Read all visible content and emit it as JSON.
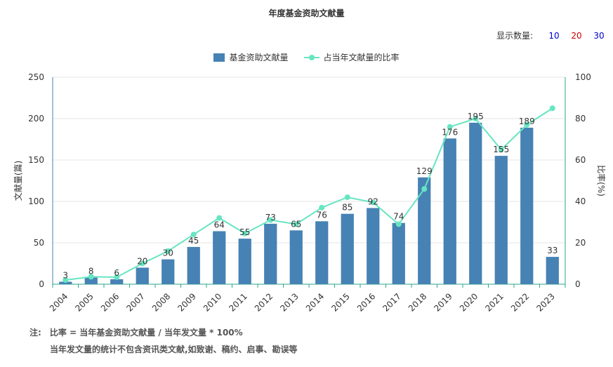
{
  "title": "年度基金资助文献量",
  "controls": {
    "label": "显示数量:",
    "options": [
      {
        "label": "10",
        "color": "#0000CC"
      },
      {
        "label": "20",
        "color": "#CC0000"
      },
      {
        "label": "30",
        "color": "#0000CC"
      }
    ]
  },
  "legend": {
    "bar_label": "基金资助文献量",
    "line_label": "占当年文献量的比率"
  },
  "notes": {
    "prefix": "注:",
    "line1": "比率 = 当年基金资助文献量 / 当年发文量 * 100%",
    "line2": "当年发文量的统计不包含资讯类文献,如致谢、稿约、启事、勘误等"
  },
  "colors": {
    "bar": "#4682B4",
    "line": "#66E5C2",
    "axis_left": "#4682B4",
    "axis_right": "#2BA58A",
    "grid": "#E6E6E6"
  },
  "chart_data": {
    "type": "bar",
    "title": "年度基金资助文献量",
    "categories": [
      "2004",
      "2005",
      "2006",
      "2007",
      "2008",
      "2009",
      "2010",
      "2011",
      "2012",
      "2013",
      "2014",
      "2015",
      "2016",
      "2017",
      "2018",
      "2019",
      "2020",
      "2021",
      "2022",
      "2023"
    ],
    "series": [
      {
        "name": "基金资助文献量",
        "type": "bar",
        "axis": "left",
        "values": [
          3,
          8,
          6,
          20,
          30,
          45,
          64,
          55,
          73,
          65,
          76,
          85,
          92,
          74,
          129,
          176,
          195,
          155,
          189,
          33
        ]
      },
      {
        "name": "占当年文献量的比率",
        "type": "line",
        "axis": "right",
        "values": [
          2,
          3.6,
          3.4,
          10,
          16,
          24,
          32,
          24.5,
          31,
          29,
          37,
          42,
          39.5,
          29,
          46,
          76,
          80,
          65,
          77,
          85
        ]
      }
    ],
    "ylabel_left": "文献量(篇)",
    "ylabel_right": "比率(%)",
    "ylim_left": [
      0,
      250
    ],
    "ylim_right": [
      0,
      100
    ],
    "yticks_left": [
      "0",
      "50",
      "100",
      "150",
      "200",
      "250"
    ],
    "yticks_right": [
      "0",
      "20",
      "40",
      "60",
      "80",
      "100"
    ],
    "grid": true,
    "legend_position": "top-center"
  }
}
